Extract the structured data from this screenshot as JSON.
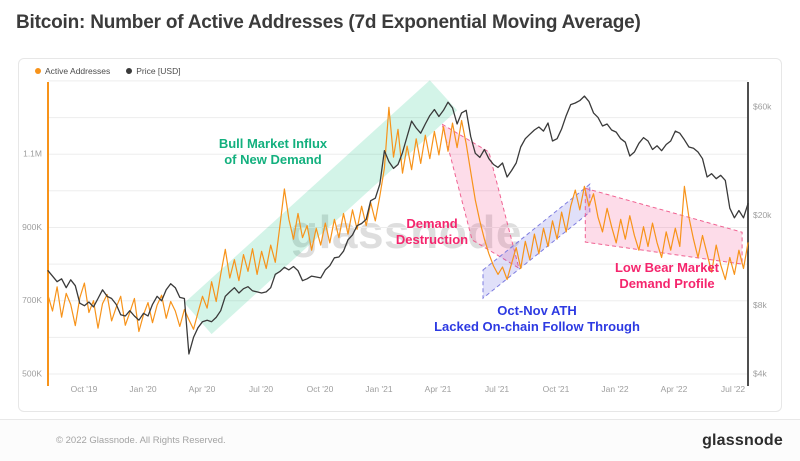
{
  "header": {
    "title": "Bitcoin: Number of Active Addresses (7d Exponential Moving Average)"
  },
  "legend": {
    "items": [
      {
        "label": "Active Addresses",
        "color": "#f7931a"
      },
      {
        "label": "Price [USD]",
        "color": "#3a3a3a"
      }
    ]
  },
  "watermark": {
    "text": "glassnode"
  },
  "annotations": {
    "bull_market": {
      "line1": "Bull Market Influx",
      "line2": "of New Demand",
      "color": "#13b07e"
    },
    "demand_destruction": {
      "line1": "Demand",
      "line2": "Destruction",
      "color": "#f5256d"
    },
    "ath_follow_through": {
      "line1": "Oct-Nov ATH",
      "line2": "Lacked On-chain Follow Through",
      "color": "#2d3ae2"
    },
    "low_bear": {
      "line1": "Low Bear Market",
      "line2": "Demand Profile",
      "color": "#f5256d"
    }
  },
  "footer": {
    "copyright": "© 2022 Glassnode. All Rights Reserved.",
    "brand": "glassnode"
  },
  "colors": {
    "active_addresses": "#f7931a",
    "price": "#3a3a3a",
    "bull_band": "#b9ecd8",
    "bear_band": "#f9cfdf",
    "ath_band": "#d4d3f4",
    "grid": "#ededed"
  },
  "chart_data": {
    "type": "line",
    "title": "Bitcoin: Number of Active Addresses (7d Exponential Moving Average)",
    "x": {
      "start": "2019-08-05",
      "interval": "weekly",
      "end": "2022-07-17",
      "tick_labels": [
        "Oct '19",
        "Jan '20",
        "Apr '20",
        "Jul '20",
        "Oct '20",
        "Jan '21",
        "Apr '21",
        "Jul '21",
        "Oct '21",
        "Jan '22",
        "Apr '22",
        "Jul '22"
      ]
    },
    "y_left": {
      "name": "Active Addresses",
      "scale": "linear",
      "unit": "thousands of addresses",
      "color": "#f7931a",
      "range": [
        460,
        1310
      ],
      "grid": {
        "from": 500,
        "to": 1300,
        "step": 100
      },
      "ticks": [
        {
          "value": 500,
          "label": "500K"
        },
        {
          "value": 700,
          "label": "700K"
        },
        {
          "value": 900,
          "label": "900K"
        },
        {
          "value": 1100,
          "label": "1.1M"
        }
      ]
    },
    "y_right": {
      "name": "Price [USD]",
      "scale": "log",
      "unit": "thousands of USD",
      "color": "#4f4f4f",
      "range": [
        4,
        72
      ],
      "ticks": [
        {
          "value": 4,
          "label": "$4k"
        },
        {
          "value": 8,
          "label": "$8k"
        },
        {
          "value": 20,
          "label": "$20k"
        },
        {
          "value": 60,
          "label": "$60k"
        }
      ]
    },
    "series": [
      {
        "name": "Active Addresses",
        "axis": "left",
        "color": "#f7931a",
        "stroke_width": 1.2,
        "values": [
          715,
          672,
          738,
          655,
          720,
          690,
          632,
          708,
          748,
          668,
          700,
          625,
          692,
          717,
          645,
          682,
          712,
          633,
          668,
          706,
          616,
          662,
          695,
          640,
          688,
          715,
          652,
          698,
          672,
          630,
          676,
          648,
          622,
          668,
          712,
          680,
          752,
          698,
          772,
          840,
          762,
          812,
          755,
          826,
          780,
          842,
          772,
          835,
          788,
          852,
          805,
          902,
          1005,
          922,
          868,
          938,
          872,
          905,
          838,
          898,
          852,
          912,
          858,
          922,
          872,
          938,
          882,
          948,
          895,
          958,
          905,
          968,
          918,
          985,
          1062,
          1228,
          1092,
          1168,
          1048,
          1122,
          1058,
          1142,
          1075,
          1152,
          1088,
          1162,
          1098,
          1175,
          1108,
          1185,
          1118,
          1192,
          1128,
          1052,
          975,
          918,
          868,
          828,
          795,
          772,
          792,
          758,
          802,
          845,
          788,
          862,
          812,
          882,
          828,
          898,
          848,
          918,
          868,
          942,
          888,
          958,
          1002,
          948,
          1012,
          958,
          992,
          928,
          888,
          952,
          902,
          858,
          922,
          868,
          932,
          878,
          838,
          902,
          848,
          912,
          858,
          818,
          888,
          838,
          898,
          848,
          1012,
          928,
          868,
          818,
          878,
          828,
          778,
          852,
          798,
          758,
          818,
          772,
          838,
          788,
          858
        ]
      },
      {
        "name": "Price [USD]",
        "axis": "right",
        "color": "#3a3a3a",
        "stroke_width": 1.3,
        "values": [
          11.4,
          10.8,
          10.2,
          10.5,
          9.6,
          10.4,
          9.8,
          8.2,
          8.0,
          8.3,
          7.9,
          8.6,
          9.4,
          8.8,
          8.6,
          8.1,
          7.3,
          7.2,
          7.6,
          7.2,
          6.9,
          7.4,
          7.2,
          8.1,
          8.8,
          8.4,
          9.4,
          10.0,
          9.6,
          8.7,
          8.6,
          4.9,
          5.8,
          6.4,
          6.8,
          6.9,
          6.8,
          7.1,
          7.6,
          8.8,
          9.2,
          9.6,
          9.1,
          9.5,
          9.7,
          9.3,
          9.2,
          9.1,
          9.2,
          9.6,
          11.0,
          11.3,
          11.8,
          11.5,
          11.9,
          11.4,
          10.3,
          10.5,
          10.8,
          10.7,
          10.6,
          11.5,
          12.0,
          13.0,
          13.1,
          13.9,
          15.6,
          16.4,
          18.0,
          18.4,
          19.2,
          23.2,
          23.8,
          27.4,
          38.5,
          34.5,
          32.2,
          33.5,
          37.8,
          44.5,
          52.0,
          48.5,
          46.0,
          50.5,
          55.0,
          58.5,
          54.5,
          58.0,
          63.0,
          59.5,
          50.5,
          56.5,
          58.0,
          44.5,
          37.5,
          36.0,
          39.0,
          35.5,
          33.5,
          32.5,
          34.0,
          29.5,
          31.5,
          34.0,
          40.0,
          43.5,
          45.5,
          47.5,
          49.0,
          47.0,
          51.0,
          42.5,
          43.5,
          48.0,
          55.0,
          61.5,
          62.5,
          64.0,
          67.0,
          63.5,
          56.5,
          54.0,
          49.5,
          50.5,
          47.5,
          46.5,
          43.5,
          42.0,
          36.5,
          38.0,
          41.5,
          44.0,
          42.5,
          39.0,
          40.5,
          38.5,
          41.0,
          42.5,
          47.0,
          46.0,
          43.0,
          40.0,
          39.5,
          38.0,
          35.5,
          29.5,
          30.5,
          29.0,
          30.0,
          28.5,
          21.5,
          19.5,
          21.0,
          19.5,
          22.5
        ]
      }
    ],
    "bands": [
      {
        "id": "bull-market-influx",
        "label": "Bull Market Influx of New Demand",
        "fill": "rgba(35,200,140,0.20)",
        "stroke": "none",
        "dashed": false,
        "points": [
          [
            30,
            694
          ],
          [
            36,
            609
          ],
          [
            90,
            1220
          ],
          [
            84,
            1302
          ]
        ]
      },
      {
        "id": "demand-destruction",
        "label": "Demand Destruction",
        "fill": "rgba(244,80,145,0.20)",
        "stroke": "#f06292",
        "dashed": true,
        "points": [
          [
            86.7,
            1182
          ],
          [
            97,
            1106
          ],
          [
            103.6,
            789
          ],
          [
            93.3,
            866
          ]
        ]
      },
      {
        "id": "oct-nov-ath",
        "label": "Oct-Nov ATH Lacked On-chain Follow Through",
        "fill": "rgba(100,100,225,0.20)",
        "stroke": "#7d7ce0",
        "dashed": true,
        "points": [
          [
            95.7,
            784
          ],
          [
            119.2,
            1018
          ],
          [
            119.2,
            942
          ],
          [
            95.7,
            707
          ]
        ]
      },
      {
        "id": "low-bear-market",
        "label": "Low Bear Market Demand Profile",
        "fill": "rgba(244,80,145,0.20)",
        "stroke": "#f06292",
        "dashed": true,
        "points": [
          [
            118.2,
            1007
          ],
          [
            152.7,
            887
          ],
          [
            152.7,
            800
          ],
          [
            118.2,
            860
          ]
        ]
      }
    ]
  }
}
